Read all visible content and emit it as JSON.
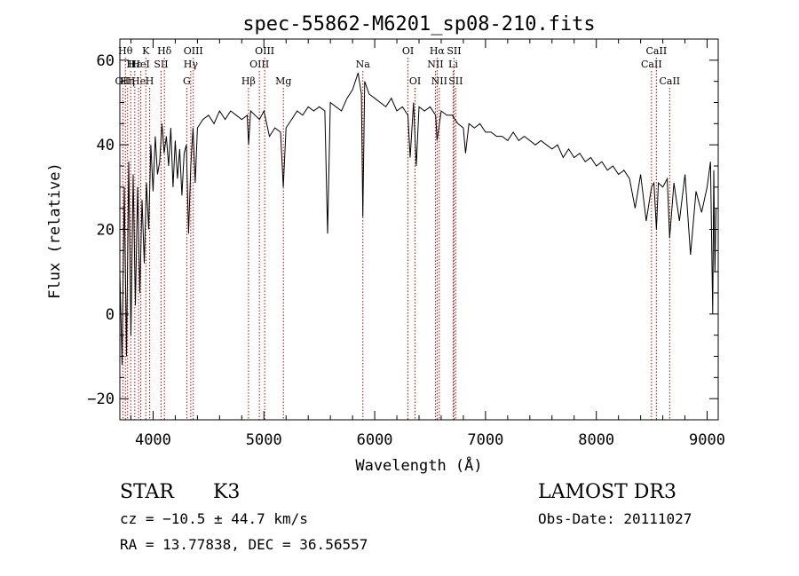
{
  "chart_data": {
    "type": "line",
    "title": "spec-55862-M6201_sp08-210.fits",
    "xlabel": "Wavelength (Å)",
    "ylabel": "Flux (relative)",
    "xlim": [
      3700,
      9100
    ],
    "ylim": [
      -25,
      65
    ],
    "x_ticks": [
      4000,
      5000,
      6000,
      7000,
      8000,
      9000
    ],
    "y_ticks": [
      -20,
      0,
      20,
      40,
      60
    ],
    "x_tick_labels": [
      "4000",
      "5000",
      "6000",
      "7000",
      "8000",
      "9000"
    ],
    "y_tick_labels": [
      "−20",
      "0",
      "20",
      "40",
      "60"
    ],
    "line_color": "#000000",
    "marker_color": "#cc0000",
    "series": [
      {
        "name": "flux",
        "points": [
          [
            3700,
            10
          ],
          [
            3720,
            -12
          ],
          [
            3740,
            30
          ],
          [
            3760,
            -10
          ],
          [
            3780,
            36
          ],
          [
            3800,
            -5
          ],
          [
            3820,
            33
          ],
          [
            3840,
            2
          ],
          [
            3860,
            30
          ],
          [
            3880,
            5
          ],
          [
            3900,
            27
          ],
          [
            3920,
            12
          ],
          [
            3940,
            31
          ],
          [
            3960,
            20
          ],
          [
            3980,
            40
          ],
          [
            4000,
            29
          ],
          [
            4020,
            42
          ],
          [
            4040,
            33
          ],
          [
            4060,
            36
          ],
          [
            4080,
            45
          ],
          [
            4100,
            38
          ],
          [
            4120,
            42
          ],
          [
            4140,
            35
          ],
          [
            4160,
            44
          ],
          [
            4180,
            30
          ],
          [
            4200,
            41
          ],
          [
            4220,
            32
          ],
          [
            4240,
            39
          ],
          [
            4260,
            28
          ],
          [
            4280,
            38
          ],
          [
            4300,
            40
          ],
          [
            4320,
            19
          ],
          [
            4340,
            35
          ],
          [
            4360,
            44
          ],
          [
            4380,
            31
          ],
          [
            4400,
            44
          ],
          [
            4450,
            46
          ],
          [
            4500,
            47
          ],
          [
            4550,
            45
          ],
          [
            4600,
            48
          ],
          [
            4650,
            46
          ],
          [
            4700,
            48
          ],
          [
            4750,
            47
          ],
          [
            4800,
            46
          ],
          [
            4850,
            47
          ],
          [
            4862,
            40
          ],
          [
            4880,
            48
          ],
          [
            4920,
            47
          ],
          [
            4960,
            46
          ],
          [
            5000,
            48
          ],
          [
            5050,
            42
          ],
          [
            5100,
            44
          ],
          [
            5150,
            43
          ],
          [
            5175,
            30
          ],
          [
            5200,
            44
          ],
          [
            5250,
            46
          ],
          [
            5300,
            48
          ],
          [
            5350,
            47
          ],
          [
            5400,
            49
          ],
          [
            5450,
            48
          ],
          [
            5500,
            49
          ],
          [
            5550,
            48
          ],
          [
            5575,
            19
          ],
          [
            5600,
            50
          ],
          [
            5650,
            49
          ],
          [
            5700,
            48
          ],
          [
            5750,
            51
          ],
          [
            5800,
            53
          ],
          [
            5850,
            57
          ],
          [
            5880,
            52
          ],
          [
            5893,
            23
          ],
          [
            5910,
            55
          ],
          [
            5950,
            52
          ],
          [
            6000,
            51
          ],
          [
            6050,
            50
          ],
          [
            6100,
            49
          ],
          [
            6150,
            51
          ],
          [
            6200,
            48
          ],
          [
            6250,
            49
          ],
          [
            6300,
            47
          ],
          [
            6320,
            37
          ],
          [
            6350,
            50
          ],
          [
            6375,
            35
          ],
          [
            6400,
            49
          ],
          [
            6450,
            48
          ],
          [
            6500,
            49
          ],
          [
            6550,
            47
          ],
          [
            6563,
            41
          ],
          [
            6600,
            48
          ],
          [
            6650,
            47
          ],
          [
            6700,
            47
          ],
          [
            6750,
            45
          ],
          [
            6800,
            44
          ],
          [
            6820,
            38
          ],
          [
            6850,
            45
          ],
          [
            6900,
            44
          ],
          [
            6950,
            45
          ],
          [
            7000,
            43
          ],
          [
            7050,
            43
          ],
          [
            7100,
            42
          ],
          [
            7150,
            42
          ],
          [
            7200,
            41
          ],
          [
            7250,
            43
          ],
          [
            7300,
            41
          ],
          [
            7350,
            42
          ],
          [
            7400,
            41
          ],
          [
            7450,
            40
          ],
          [
            7500,
            41
          ],
          [
            7550,
            40
          ],
          [
            7600,
            39
          ],
          [
            7650,
            40
          ],
          [
            7700,
            37
          ],
          [
            7750,
            39
          ],
          [
            7800,
            37
          ],
          [
            7850,
            38
          ],
          [
            7900,
            36
          ],
          [
            7950,
            37
          ],
          [
            8000,
            35
          ],
          [
            8050,
            36
          ],
          [
            8100,
            34
          ],
          [
            8150,
            35
          ],
          [
            8200,
            33
          ],
          [
            8250,
            34
          ],
          [
            8300,
            32
          ],
          [
            8350,
            25
          ],
          [
            8400,
            33
          ],
          [
            8450,
            22
          ],
          [
            8498,
            30
          ],
          [
            8520,
            31
          ],
          [
            8542,
            20
          ],
          [
            8560,
            31
          ],
          [
            8600,
            30
          ],
          [
            8640,
            32
          ],
          [
            8662,
            18
          ],
          [
            8700,
            31
          ],
          [
            8750,
            22
          ],
          [
            8800,
            33
          ],
          [
            8850,
            14
          ],
          [
            8900,
            29
          ],
          [
            8950,
            24
          ],
          [
            9000,
            30
          ],
          [
            9030,
            36
          ],
          [
            9050,
            0
          ],
          [
            9060,
            34
          ],
          [
            9070,
            10
          ],
          [
            9080,
            25
          ]
        ]
      }
    ],
    "line_markers": [
      {
        "wave": 3727,
        "label": "OII",
        "row": 3
      },
      {
        "wave": 3750,
        "label": "Hθ",
        "row": 1
      },
      {
        "wave": 3770,
        "label": "Hη",
        "row": 3
      },
      {
        "wave": 3798,
        "label": "H",
        "row": 2
      },
      {
        "wave": 3835,
        "label": "Hε",
        "row": 2
      },
      {
        "wave": 3869,
        "label": "He",
        "row": 3
      },
      {
        "wave": 3889,
        "label": "HeI",
        "row": 2
      },
      {
        "wave": 3934,
        "label": "K",
        "row": 1
      },
      {
        "wave": 3969,
        "label": "H",
        "row": 3
      },
      {
        "wave": 4072,
        "label": "SII",
        "row": 2
      },
      {
        "wave": 4102,
        "label": "Hδ",
        "row": 1
      },
      {
        "wave": 4304,
        "label": "G",
        "row": 3
      },
      {
        "wave": 4340,
        "label": "Hγ",
        "row": 2
      },
      {
        "wave": 4363,
        "label": "OIII",
        "row": 1
      },
      {
        "wave": 4861,
        "label": "Hβ",
        "row": 3
      },
      {
        "wave": 4959,
        "label": "OIII",
        "row": 2
      },
      {
        "wave": 5007,
        "label": "OIII",
        "row": 1
      },
      {
        "wave": 5176,
        "label": "Mg",
        "row": 3
      },
      {
        "wave": 5893,
        "label": "Na",
        "row": 2
      },
      {
        "wave": 6300,
        "label": "OI",
        "row": 1
      },
      {
        "wave": 6364,
        "label": "OI",
        "row": 3
      },
      {
        "wave": 6548,
        "label": "NII",
        "row": 2
      },
      {
        "wave": 6563,
        "label": "Hα",
        "row": 1
      },
      {
        "wave": 6583,
        "label": "NII",
        "row": 3
      },
      {
        "wave": 6708,
        "label": "Li",
        "row": 2
      },
      {
        "wave": 6716,
        "label": "SII",
        "row": 1
      },
      {
        "wave": 6731,
        "label": "SII",
        "row": 3
      },
      {
        "wave": 8498,
        "label": "CaII",
        "row": 2
      },
      {
        "wave": 8542,
        "label": "CaII",
        "row": 1
      },
      {
        "wave": 8662,
        "label": "CaII",
        "row": 3
      }
    ]
  },
  "info": {
    "object_class": "STAR",
    "subclass": "K3",
    "survey": "LAMOST DR3",
    "redshift": "cz = −10.5 ± 44.7 km/s",
    "obs_date": "Obs-Date: 20111027",
    "coords": "RA =  13.77838, DEC =  36.56557"
  }
}
